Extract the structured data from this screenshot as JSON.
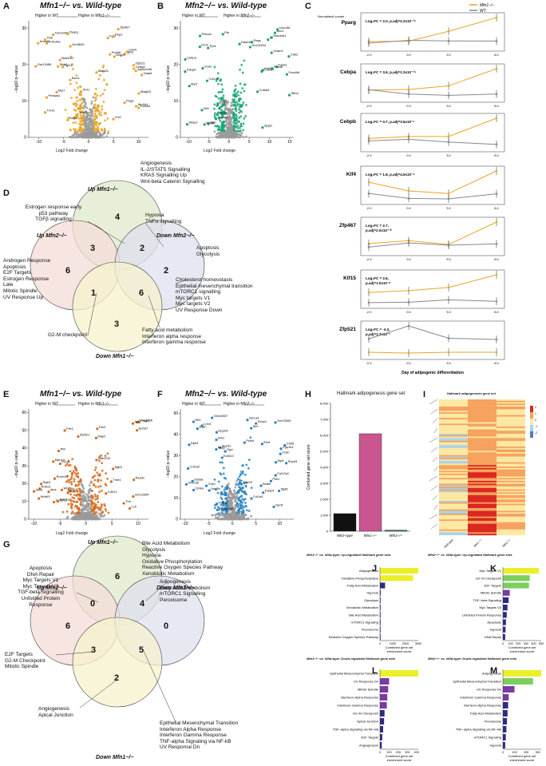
{
  "panel_letters": [
    "A",
    "B",
    "C",
    "D",
    "E",
    "F",
    "G",
    "H",
    "I",
    "J",
    "K",
    "L",
    "M"
  ],
  "volcano": {
    "A": {
      "title": "Mfn1−/− vs. Wild-type",
      "left": "Higher in WT",
      "right": "Higher in Mfn1−/−",
      "xlabel": "Log2 Fold change",
      "ylabel": "−log10 p−value",
      "xticks": [
        "-10",
        "-5",
        "0",
        "5",
        "10"
      ],
      "yticks": [
        "0",
        "10",
        "20",
        "30"
      ],
      "genes": [
        "Il1rl1",
        "Peg3",
        "Gm13394",
        "Atp1b1",
        "Gm9625",
        "Magt10",
        "Gm13456",
        "Gata4",
        "Trml2",
        "Col2a1",
        "Myrf",
        "Igfb3",
        "Bicc1",
        "Cd34",
        "Sfyk1",
        "Mrgprf",
        "Pnf144a",
        "Fgf7",
        "Fgf16",
        "Apobec3b",
        "Mab21l1",
        "Mab2l1",
        "Pmepa1",
        "Pkp2",
        "Anxa8",
        "Cebpa",
        "Pparg",
        "Zfp467",
        "Tnni1",
        "H19",
        "Dag2",
        "Pcdh6",
        "Ttxb",
        "Zfp521"
      ]
    },
    "B": {
      "title": "Mfn2−/− vs. Wild-type",
      "left": "Higher in WT",
      "right": "Higher in Mfn2−/−",
      "xlabel": "Log2 Fold change",
      "ylabel": "−log10 p−value",
      "xticks": [
        "-10",
        "-5",
        "0",
        "5",
        "10",
        "15"
      ],
      "yticks": [
        "0",
        "10",
        "20",
        "30"
      ],
      "genes": [
        "Ptn",
        "Vcam1",
        "Fabp5",
        "Colba3",
        "Ogn",
        "Klhl24",
        "Mmp2",
        "Hr",
        "Grem1",
        "Sppl1",
        "Vcan",
        "Serpinb1",
        "Ppl1",
        "Kank1",
        "Megf6",
        "Pegs",
        "Myrf",
        "Dasm2",
        "Cebpa",
        "Bnc1",
        "Col1a2",
        "Foxo6",
        "Wt1",
        "Frmd4b",
        "Col7a1",
        "Slfn4",
        "Prss12",
        "Unc13b",
        "Plxna4",
        "Gm13394",
        "Sdc3",
        "Ccdc81",
        "Il1rl1",
        "Cdh2"
      ]
    },
    "E": {
      "title": "Mfn1−/− vs. Wild-type",
      "left": "Higher in WT",
      "right": "Higher in Mfn1−/−",
      "xlabel": "Log2 Fold change",
      "ylabel": "−log10 p−value",
      "xticks": [
        "-10",
        "-5",
        "0",
        "5",
        "10"
      ],
      "yticks": [
        "0",
        "10",
        "20",
        "30",
        "40",
        "50",
        "60"
      ],
      "genes": [
        "Zfp521",
        "Cdh11",
        "Ifrm",
        "Fat4",
        "Wdr63",
        "Epha7",
        "Man1a",
        "Tnnt1",
        "Runx1t1",
        "Gm13456",
        "Wnt5a",
        "Plagl1",
        "Atxn1",
        "Map2",
        "Prrt1",
        "Mab21l2",
        "Col12a1",
        "Agtr2",
        "Rgs3",
        "Tnn",
        "Robo2",
        "Gm13394",
        "Itih4",
        "Lpl",
        "Scd1",
        "Lctl",
        "Spin1a",
        "Rsad1",
        "P2rx1"
      ]
    },
    "F": {
      "title": "Mfn2−/− vs. Wild-type",
      "left": "Higher in WT",
      "right": "Higher in Mfn2−/−",
      "xlabel": "Log2 Fold change",
      "ylabel": "−log10 p−value",
      "xticks": [
        "-10",
        "-5",
        "0",
        "5",
        "10"
      ],
      "yticks": [
        "0",
        "10",
        "20",
        "30",
        "40",
        "50"
      ],
      "genes": [
        "Ogn",
        "Vcan",
        "Dpk3",
        "Col12a1",
        "Unc5b",
        "Col1a1",
        "Ptn",
        "Podxl",
        "Col1a2",
        "Ifrm",
        "Dpysl3",
        "Slc1a3",
        "Kctd12",
        "Svep1",
        "Sned1",
        "Itga8",
        "Arhx",
        "Gpd1",
        "Aspn",
        "Fabp4",
        "Gm16537",
        "Cd36",
        "Cidea",
        "Plin1",
        "Gata6",
        "Etv5",
        "Wt1",
        "Cyp1b1",
        "Hspb1",
        "Myrf",
        "Crip1",
        "Shpd3",
        "Peg3",
        "Bcam",
        "Unc13b",
        "Sbx20",
        "Upk3b",
        "Gm13394",
        "Lrrn4"
      ]
    }
  },
  "venn_C": {
    "labels": {
      "up1": "Up Mfn1−/−",
      "up2": "Up Mfn2−/−",
      "down2": "Down Mfn2−/−",
      "down1": "Down Mfn1−/−"
    },
    "counts": {
      "up1": "4",
      "up2": "6",
      "down2": "2",
      "down1": "3",
      "up1_up2": "3",
      "up1_down2": "2",
      "up2_down1": "1",
      "down1_down2": "6"
    },
    "annotations": {
      "up1": [
        "Angiogenesis",
        "IL-2/STAT5 Signalling",
        "KRAS Signalling Up",
        "Wnt-beta Catenin Signalling"
      ],
      "up1_up2": [
        "Estrogen response early",
        "p53 pathway",
        "TGFβ signalling"
      ],
      "up1_down2": [
        "Hypoxia",
        "TNFα signalling"
      ],
      "down2": [
        "Apoptosis",
        "Glycolysis"
      ],
      "up2": [
        "Androgen Response",
        "Apoptosis",
        "E2F Targets",
        "Estrogen Response",
        "Late",
        "Mitotic Spindle",
        "UV Response Up"
      ],
      "down1_down2": [
        "Cholesterol homeostasis",
        "Epithelial mesenchymal transition",
        "mTORC1 signalling",
        "Myc targets V1",
        "Myc targets V2",
        "UV Response Down"
      ],
      "up2_down1": [
        "G2-M checkpoint"
      ],
      "down1": [
        "Fatty acid metabolism",
        "Interferon alpha response",
        "Interferon gamma response"
      ]
    }
  },
  "venn_G": {
    "labels": {
      "up1": "Up Mfn1−/−",
      "up2": "Up Mfn2−/−",
      "down2": "Down Mfn2−/−",
      "down1": "Down Mfn1−/−"
    },
    "counts": {
      "up1": "6",
      "up2": "6",
      "down2": "0",
      "down1": "2",
      "up1_up2": "0",
      "up1_down2": "4",
      "up2_down1": "3",
      "down1_down2": "5"
    },
    "annotations": {
      "up1": [
        "Bile Acid Metabolism",
        "Glycolysis",
        "Hypoxia",
        "Oxidative Phosphorylation",
        "Reactive Oxygen Species Pathway",
        "Xenobiotic Metabolism"
      ],
      "up1_down2": [
        "Adipogenesis",
        "Fatty Acid Metabolism",
        "mTORC1 Signalling",
        "Peroxisome"
      ],
      "up2": [
        "Apoptosis",
        "DNA Repair",
        "Myc Targets V1",
        "Myc Targets V2",
        "TGF-beta Signalling",
        "Unfolded Protein",
        "Response"
      ],
      "up2_down1": [
        "E2F Targets",
        "G2-M Checkpoint",
        "Mitotic Spindle"
      ],
      "down1": [
        "Angiogenesis",
        "Apical Junction"
      ],
      "down1_down2": [
        "Epithelial Mesenchymal Transition",
        "Interferon Alpha Response",
        "Interferon Gamma Response",
        "TNF-alpha Signaling via NF-kB",
        "UV Response Dn"
      ]
    }
  },
  "panel_D": {
    "legend": [
      "Mfn1−/−",
      "WT"
    ],
    "ylabel": "Normalised counts",
    "xlabel": "Day of adipogenic differentiation",
    "xticks": [
      "-2.0",
      "0.0",
      "3.0",
      "8.0"
    ],
    "genes": [
      {
        "name": "Pparg",
        "stat": "Log₂FC = 2.0, p.adj=2.2x10⁻¹⁶"
      },
      {
        "name": "Cebpa",
        "stat": "Log₂FC = 3.6, p.adj=1.3x10⁻¹⁶"
      },
      {
        "name": "Cebpb",
        "stat": "Log₂FC = 0.7, p.adj=3.6x10⁻⁵"
      },
      {
        "name": "Klf4",
        "stat": "Log₂FC = 1.8, p.adj=4.6x10⁻⁴"
      },
      {
        "name": "Zfp467",
        "stat": "Log₂FC = 2.7,\np.adj=2.0x10⁻¹⁰"
      },
      {
        "name": "Klf15",
        "stat": "Log₂FC = 2.6,\np.adj=1.0x10⁻⁸"
      },
      {
        "name": "Zfp521",
        "stat": "Log₂FC = -4.3,\np.adj=1.3x10⁻⁷"
      }
    ]
  },
  "chart_data": [
    {
      "type": "bar",
      "title": "Hallmark adipogenesis gene set",
      "categories": [
        "Wild−type",
        "Mfn1−/−",
        "Mfn2−/−"
      ],
      "values": [
        1100,
        6100,
        60
      ],
      "colors": [
        "#111111",
        "#c9568f",
        "#1a7a66"
      ],
      "ylabel": "Combined gene set score",
      "yticks": [
        "0",
        "1,000",
        "2,000",
        "3,000",
        "4,000",
        "5,000",
        "6,000",
        "7,000",
        "8,000"
      ],
      "ylim": [
        0,
        8000
      ]
    },
    {
      "type": "bar",
      "orientation": "horizontal",
      "panel": "J",
      "title": "Mfn1−/− vs. Wild-type: Up-regulated Hallmark gene sets",
      "xlabel": "Combined gene set enrichment score",
      "categories": [
        "Adipogenesis",
        "Oxidative Phosphorylation",
        "Fatty Acid Metabolism",
        "Hypoxia",
        "Glycolysis",
        "Xenobiotic Metabolism",
        "Bile Acid Metabolism",
        "mTORC1 Signaling",
        "Peroxisome",
        "Reactive Oxygen Species Pathway"
      ],
      "values": [
        3000,
        2600,
        400,
        60,
        50,
        40,
        40,
        35,
        30,
        25
      ],
      "xticks": [
        "0",
        "1000",
        "2000",
        "3000"
      ],
      "xlim": [
        0,
        3000
      ]
    },
    {
      "type": "bar",
      "orientation": "horizontal",
      "panel": "K",
      "title": "Mfn2−/− vs. Wild-type: Up-regulated Hallmark gene sets",
      "xlabel": "Combined gene set enrichment score",
      "categories": [
        "Myc Targets V1",
        "G2−M Checkpoint",
        "E2F Targets",
        "Mitotic Spindle",
        "TGF−beta Signaling",
        "Myc Targets V2",
        "Unfolded Protein Response",
        "Apoptosis",
        "Hypoxia",
        "DNA Repair"
      ],
      "values": [
        470,
        350,
        340,
        90,
        75,
        60,
        50,
        40,
        35,
        30
      ],
      "xticks": [
        "0",
        "100",
        "200",
        "300",
        "400",
        "500"
      ],
      "xlim": [
        0,
        500
      ]
    },
    {
      "type": "bar",
      "orientation": "horizontal",
      "panel": "L",
      "title": "Mfn1−/− vs. Wild-type: Down-regulated Hallmark gene sets",
      "xlabel": "Combined gene set enrichment score",
      "categories": [
        "Epithelial Mesenchymal Transition",
        "UV Response Dn",
        "Mitotic Spindle",
        "Interferon Alpha Response",
        "Interferon Gamma Response",
        "G2−M Checkpoint",
        "Apical Junction",
        "TNF−alpha Signaling via NF−kB",
        "E2F Targets",
        "Angiogenesis"
      ],
      "values": [
        420,
        100,
        90,
        80,
        75,
        50,
        45,
        35,
        25,
        20
      ],
      "xticks": [
        "0",
        "100",
        "200",
        "300",
        "400"
      ],
      "xlim": [
        0,
        420
      ]
    },
    {
      "type": "bar",
      "orientation": "horizontal",
      "panel": "M",
      "title": "Mfn2−/− vs. Wild-type: Down-regulated Hallmark gene sets",
      "xlabel": "Combined gene set enrichment score",
      "categories": [
        "Adipogenesis",
        "Epithelial Mesenchymal Transition",
        "UV Response Dn",
        "Interferon Gamma Response",
        "Interferon Alpha Response",
        "Fatty Acid Metabolism",
        "Peroxisome",
        "TNF−alpha Signaling via NF−kB",
        "mTORC1 Signaling",
        "Hypoxia"
      ],
      "values": [
        330,
        260,
        100,
        50,
        45,
        40,
        35,
        30,
        25,
        20
      ],
      "xticks": [
        "0",
        "100",
        "200",
        "300"
      ],
      "xlim": [
        0,
        330
      ]
    }
  ],
  "heatmap_I": {
    "title": "Hallmark adipogenesis gene set",
    "columns": [
      "Wild-type",
      "Mfn1−/−",
      "Mfn2−/−"
    ],
    "scale": [
      "2",
      "1",
      "0",
      "-1",
      "-2"
    ]
  }
}
